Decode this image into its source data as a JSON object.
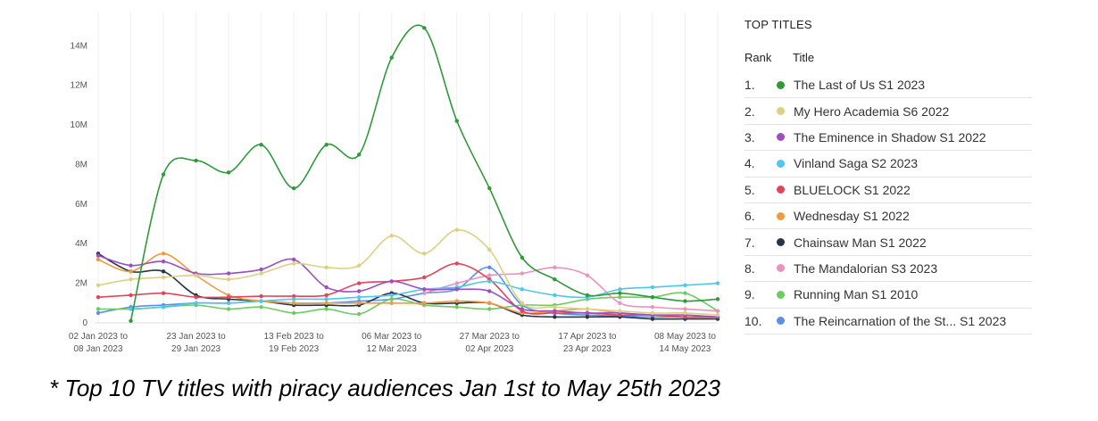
{
  "legend": {
    "title": "TOP TITLES",
    "rank_header": "Rank",
    "title_header": "Title",
    "items": [
      {
        "rank": "1.",
        "title": "The Last of Us S1 2023",
        "color": "#2e9a3a"
      },
      {
        "rank": "2.",
        "title": "My Hero Academia S6 2022",
        "color": "#ddd084"
      },
      {
        "rank": "3.",
        "title": "The Eminence in Shadow S1 2022",
        "color": "#9c4fc0"
      },
      {
        "rank": "4.",
        "title": "Vinland Saga S2 2023",
        "color": "#4dc8ea"
      },
      {
        "rank": "5.",
        "title": "BLUELOCK S1 2022",
        "color": "#e0455a"
      },
      {
        "rank": "6.",
        "title": "Wednesday S1 2022",
        "color": "#f09a3c"
      },
      {
        "rank": "7.",
        "title": "Chainsaw Man S1 2022",
        "color": "#263449"
      },
      {
        "rank": "8.",
        "title": "The Mandalorian S3 2023",
        "color": "#ec92c0"
      },
      {
        "rank": "9.",
        "title": "Running Man S1 2010",
        "color": "#6ccc62"
      },
      {
        "rank": "10.",
        "title": "The Reincarnation of the St... S1 2023",
        "color": "#5c90e6"
      }
    ]
  },
  "footnote": "* Top 10 TV titles with piracy audiences Jan 1st to May 25th 2023",
  "chart_data": {
    "type": "line",
    "title": "",
    "xlabel": "",
    "ylabel": "",
    "ylim": [
      0,
      15.5
    ],
    "yticks": [
      0,
      2,
      4,
      6,
      8,
      10,
      12,
      14
    ],
    "ytick_labels": [
      "0",
      "2M",
      "4M",
      "6M",
      "8M",
      "10M",
      "12M",
      "14M"
    ],
    "x_periods": 20,
    "x_tick_indices": [
      0,
      3,
      6,
      9,
      12,
      15,
      18
    ],
    "x_tick_labels": [
      [
        "02 Jan 2023 to",
        "08 Jan 2023"
      ],
      [
        "23 Jan 2023 to",
        "29 Jan 2023"
      ],
      [
        "13 Feb 2023 to",
        "19 Feb 2023"
      ],
      [
        "06 Mar 2023 to",
        "12 Mar 2023"
      ],
      [
        "27 Mar 2023 to",
        "02 Apr 2023"
      ],
      [
        "17 Apr 2023 to",
        "23 Apr 2023"
      ],
      [
        "08 May 2023 to",
        "14 May 2023"
      ]
    ],
    "grid": "vertical",
    "series": [
      {
        "name": "The Last of Us S1 2023",
        "color": "#2e9a3a",
        "values": [
          null,
          0.1,
          7.5,
          8.2,
          7.6,
          9.0,
          6.8,
          9.0,
          8.5,
          13.4,
          14.9,
          10.2,
          6.8,
          3.3,
          2.2,
          1.4,
          1.5,
          1.3,
          1.1,
          1.2
        ]
      },
      {
        "name": "My Hero Academia S6 2022",
        "color": "#ddd084",
        "values": [
          1.9,
          2.2,
          2.3,
          2.4,
          2.2,
          2.5,
          3.0,
          2.8,
          2.9,
          4.4,
          3.5,
          4.7,
          3.7,
          1.0,
          0.8,
          0.7,
          0.6,
          0.5,
          0.5,
          0.4
        ]
      },
      {
        "name": "The Eminence in Shadow S1 2022",
        "color": "#9c4fc0",
        "values": [
          3.4,
          2.9,
          3.1,
          2.5,
          2.5,
          2.7,
          3.2,
          1.8,
          1.6,
          2.1,
          1.7,
          1.7,
          1.6,
          0.7,
          0.6,
          0.5,
          0.5,
          0.4,
          0.4,
          0.3
        ]
      },
      {
        "name": "Vinland Saga S2 2023",
        "color": "#4dc8ea",
        "values": [
          null,
          0.7,
          0.8,
          1.0,
          1.0,
          1.1,
          1.2,
          1.2,
          1.3,
          1.4,
          1.7,
          1.8,
          2.1,
          1.7,
          1.4,
          1.3,
          1.7,
          1.8,
          1.9,
          2.0
        ]
      },
      {
        "name": "BLUELOCK S1 2022",
        "color": "#e0455a",
        "values": [
          1.3,
          1.4,
          1.5,
          1.3,
          1.3,
          1.35,
          1.35,
          1.4,
          2.0,
          2.1,
          2.3,
          3.0,
          2.2,
          0.6,
          0.5,
          0.5,
          0.4,
          0.4,
          0.3,
          0.3
        ]
      },
      {
        "name": "Wednesday S1 2022",
        "color": "#f09a3c",
        "values": [
          3.2,
          2.6,
          3.5,
          2.4,
          1.4,
          1.1,
          1.0,
          1.0,
          1.0,
          1.0,
          1.0,
          1.1,
          1.0,
          0.5,
          0.6,
          0.7,
          0.5,
          0.4,
          0.3,
          0.3
        ]
      },
      {
        "name": "Chainsaw Man S1 2022",
        "color": "#263449",
        "values": [
          3.5,
          2.6,
          2.6,
          1.4,
          1.2,
          1.1,
          0.9,
          0.9,
          0.9,
          1.5,
          1.0,
          1.0,
          1.0,
          0.4,
          0.3,
          0.3,
          0.3,
          0.2,
          0.2,
          0.2
        ]
      },
      {
        "name": "The Mandalorian S3 2023",
        "color": "#ec92c0",
        "values": [
          null,
          null,
          null,
          null,
          null,
          null,
          null,
          null,
          null,
          null,
          1.5,
          2.0,
          2.4,
          2.5,
          2.8,
          2.4,
          1.0,
          0.8,
          0.7,
          0.6
        ]
      },
      {
        "name": "Running Man S1 2010",
        "color": "#6ccc62",
        "values": [
          0.7,
          0.7,
          0.8,
          0.9,
          0.7,
          0.8,
          0.5,
          0.7,
          0.45,
          1.2,
          0.9,
          0.8,
          0.7,
          0.9,
          0.9,
          1.2,
          1.3,
          1.3,
          1.5,
          0.6
        ]
      },
      {
        "name": "The Reincarnation of the St... S1 2023",
        "color": "#5c90e6",
        "values": [
          0.5,
          0.8,
          0.9,
          1.0,
          1.0,
          1.1,
          1.0,
          1.0,
          1.1,
          1.2,
          1.5,
          1.7,
          2.8,
          0.9,
          0.5,
          0.4,
          0.35,
          0.3,
          0.3,
          0.3
        ]
      }
    ]
  }
}
